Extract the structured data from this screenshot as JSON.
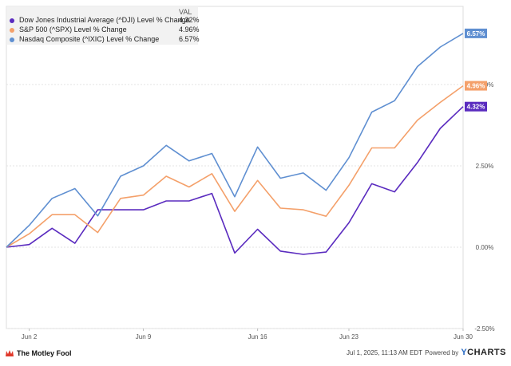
{
  "chart_data": {
    "type": "line",
    "x": [
      "May 30",
      "Jun 2",
      "Jun 3",
      "Jun 4",
      "Jun 5",
      "Jun 6",
      "Jun 9",
      "Jun 10",
      "Jun 11",
      "Jun 12",
      "Jun 13",
      "Jun 16",
      "Jun 17",
      "Jun 18",
      "Jun 20",
      "Jun 23",
      "Jun 24",
      "Jun 25",
      "Jun 26",
      "Jun 27",
      "Jun 30"
    ],
    "x_ticks": [
      {
        "label": "Jun 2",
        "index": 1
      },
      {
        "label": "Jun 9",
        "index": 6
      },
      {
        "label": "Jun 16",
        "index": 11
      },
      {
        "label": "Jun 23",
        "index": 15
      },
      {
        "label": "Jun 30",
        "index": 20
      }
    ],
    "y_ticks": [
      {
        "label": "-2.50%",
        "value": -2.5
      },
      {
        "label": "0.00%",
        "value": 0.0
      },
      {
        "label": "2.50%",
        "value": 2.5
      },
      {
        "label": "5.00%",
        "value": 5.0
      }
    ],
    "ylim": [
      -2.5,
      7.4
    ],
    "grid": "horizontal",
    "legend_position": "top-left",
    "legend_header": "VAL",
    "series": [
      {
        "name": "Dow Jones Industrial Average (^DJI) Level % Change",
        "value_label": "4.32%",
        "color": "#5a2bbf",
        "values": [
          0.0,
          0.08,
          0.58,
          0.12,
          1.15,
          1.15,
          1.15,
          1.42,
          1.42,
          1.65,
          -0.18,
          0.55,
          -0.12,
          -0.22,
          -0.15,
          0.75,
          1.95,
          1.7,
          2.6,
          3.65,
          4.32
        ]
      },
      {
        "name": "S&P 500 (^SPX) Level % Change",
        "value_label": "4.96%",
        "color": "#f4a06a",
        "values": [
          0.0,
          0.41,
          1.0,
          1.0,
          0.45,
          1.5,
          1.6,
          2.18,
          1.85,
          2.26,
          1.1,
          2.05,
          1.2,
          1.15,
          0.95,
          1.9,
          3.05,
          3.05,
          3.9,
          4.45,
          4.96
        ]
      },
      {
        "name": "Nasdaq Composite (^IXIC) Level % Change",
        "value_label": "6.57%",
        "color": "#5f8fd1",
        "values": [
          0.0,
          0.67,
          1.5,
          1.8,
          0.96,
          2.18,
          2.5,
          3.13,
          2.65,
          2.88,
          1.55,
          3.08,
          2.12,
          2.28,
          1.75,
          2.75,
          4.15,
          4.5,
          5.55,
          6.15,
          6.57
        ]
      }
    ]
  },
  "footer": {
    "brand": "The Motley Fool",
    "timestamp": "Jul 1, 2025, 11:13 AM EDT",
    "powered_by": "Powered by",
    "ycharts_y": "Y",
    "ycharts_rest": "CHARTS"
  }
}
